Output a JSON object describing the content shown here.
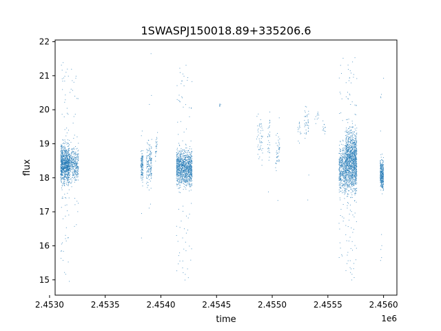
{
  "chart_data": {
    "type": "scatter",
    "title": "1SWASPJ150018.89+335206.6",
    "xlabel": "time",
    "ylabel": "flux",
    "x_offset_label": "1e6",
    "xlim": [
      2.45305,
      2.45612
    ],
    "ylim": [
      14.55,
      22.05
    ],
    "x_ticks": [
      2.453,
      2.4535,
      2.454,
      2.4545,
      2.455,
      2.4555,
      2.456
    ],
    "x_tick_labels": [
      "2.4530",
      "2.4535",
      "2.4540",
      "2.4545",
      "2.4550",
      "2.4555",
      "2.4560"
    ],
    "y_ticks": [
      15,
      16,
      17,
      18,
      19,
      20,
      21,
      22
    ],
    "y_tick_labels": [
      "15",
      "16",
      "17",
      "18",
      "19",
      "20",
      "21",
      "22"
    ],
    "grid": false,
    "legend": "none",
    "marker_color": "#1f77b4",
    "clusters": [
      {
        "x_range": [
          2.4531,
          2.45318
        ],
        "core": [
          17.4,
          19.4
        ],
        "full": [
          14.9,
          21.6
        ],
        "points": 900
      },
      {
        "x_range": [
          2.45318,
          2.45326
        ],
        "core": [
          17.5,
          19.3
        ],
        "full": [
          16.5,
          21.4
        ],
        "points": 350
      },
      {
        "x_range": [
          2.45382,
          2.45384
        ],
        "core": [
          17.5,
          19.2
        ],
        "full": [
          15.1,
          21.2
        ],
        "points": 120
      },
      {
        "x_range": [
          2.45387,
          2.45392
        ],
        "core": [
          17.2,
          19.6
        ],
        "full": [
          16.8,
          21.7
        ],
        "points": 160
      },
      {
        "x_range": [
          2.45395,
          2.45397
        ],
        "core": [
          18.0,
          19.7
        ],
        "full": [
          17.8,
          19.9
        ],
        "points": 25
      },
      {
        "x_range": [
          2.45414,
          2.45428
        ],
        "core": [
          17.3,
          19.3
        ],
        "full": [
          14.9,
          21.5
        ],
        "points": 1100
      },
      {
        "x_range": [
          2.45452,
          2.45454
        ],
        "core": [
          19.9,
          20.3
        ],
        "full": [
          19.9,
          20.3
        ],
        "points": 6
      },
      {
        "x_range": [
          2.45486,
          2.45492
        ],
        "core": [
          18.0,
          20.4
        ],
        "full": [
          17.5,
          21.0
        ],
        "points": 50
      },
      {
        "x_range": [
          2.45496,
          2.45498
        ],
        "core": [
          17.8,
          20.6
        ],
        "full": [
          16.9,
          20.6
        ],
        "points": 30
      },
      {
        "x_range": [
          2.45503,
          2.45507
        ],
        "core": [
          17.8,
          19.7
        ],
        "full": [
          16.2,
          19.8
        ],
        "points": 45
      },
      {
        "x_range": [
          2.45523,
          2.45526
        ],
        "core": [
          18.8,
          20.0
        ],
        "full": [
          18.5,
          20.2
        ],
        "points": 15
      },
      {
        "x_range": [
          2.45529,
          2.45533
        ],
        "core": [
          18.6,
          20.6
        ],
        "full": [
          17.0,
          21.0
        ],
        "points": 40
      },
      {
        "x_range": [
          2.45538,
          2.45542
        ],
        "core": [
          19.4,
          20.2
        ],
        "full": [
          19.3,
          20.2
        ],
        "points": 10
      },
      {
        "x_range": [
          2.45545,
          2.45548
        ],
        "core": [
          19.0,
          20.0
        ],
        "full": [
          18.8,
          20.2
        ],
        "points": 12
      },
      {
        "x_range": [
          2.4556,
          2.45566
        ],
        "core": [
          17.0,
          19.5
        ],
        "full": [
          15.3,
          21.7
        ],
        "points": 400
      },
      {
        "x_range": [
          2.45566,
          2.45576
        ],
        "core": [
          16.8,
          20.2
        ],
        "full": [
          14.9,
          21.6
        ],
        "points": 1300
      },
      {
        "x_range": [
          2.45597,
          2.456
        ],
        "core": [
          17.2,
          19.0
        ],
        "full": [
          15.0,
          21.6
        ],
        "points": 300
      }
    ]
  }
}
